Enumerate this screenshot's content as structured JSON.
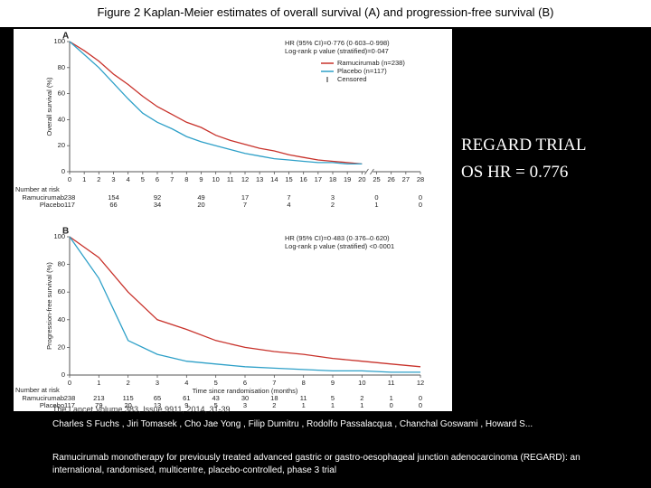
{
  "title": "Figure 2 Kaplan-Meier estimates of overall survival (A) and progression-free survival (B)",
  "chart_data": [
    {
      "type": "line",
      "panel": "A",
      "ylabel": "Overall survival (%)",
      "x": [
        0,
        1,
        2,
        3,
        4,
        5,
        6,
        7,
        8,
        9,
        10,
        11,
        12,
        13,
        14,
        15,
        16,
        17,
        18,
        19,
        20
      ],
      "series": [
        {
          "name": "Ramucirumab (n=238)",
          "color": "#c8322b",
          "values": [
            100,
            93,
            85,
            75,
            67,
            58,
            50,
            44,
            38,
            34,
            28,
            24,
            21,
            18,
            16,
            13,
            11,
            9,
            8,
            7,
            6
          ]
        },
        {
          "name": "Placebo (n=117)",
          "color": "#2ea0c8",
          "values": [
            100,
            90,
            80,
            68,
            56,
            45,
            38,
            33,
            27,
            23,
            20,
            17,
            14,
            12,
            10,
            9,
            8,
            7,
            7,
            6,
            6
          ]
        }
      ],
      "censored_label": "Censored",
      "annotations": [
        "HR (95% CI)=0·776 (0·603–0·998)",
        "Log-rank p value (stratified)=0·047"
      ],
      "xlim": [
        0,
        28
      ],
      "xbreak": [
        20,
        25
      ],
      "xticks": [
        0,
        1,
        2,
        3,
        4,
        5,
        6,
        7,
        8,
        9,
        10,
        11,
        12,
        13,
        14,
        15,
        16,
        17,
        18,
        19,
        20,
        25,
        26,
        27,
        28
      ],
      "ylim": [
        0,
        100
      ],
      "yticks": [
        0,
        20,
        40,
        60,
        80,
        100
      ],
      "risk_title": "Number at risk",
      "risk_rows": [
        {
          "name": "Ramucirumab",
          "values": [
            238,
            154,
            92,
            49,
            17,
            7,
            3,
            0,
            0
          ]
        },
        {
          "name": "Placebo",
          "values": [
            117,
            66,
            34,
            20,
            7,
            4,
            2,
            1,
            0
          ]
        }
      ]
    },
    {
      "type": "line",
      "panel": "B",
      "ylabel": "Progression-free survival (%)",
      "xlabel": "Time since randomisation (months)",
      "x": [
        0,
        1,
        2,
        3,
        4,
        5,
        6,
        7,
        8,
        9,
        10,
        11,
        12
      ],
      "series": [
        {
          "color": "#c8322b",
          "values": [
            100,
            85,
            60,
            40,
            33,
            25,
            20,
            17,
            15,
            12,
            10,
            8,
            6
          ]
        },
        {
          "color": "#2ea0c8",
          "values": [
            100,
            70,
            25,
            15,
            10,
            8,
            6,
            5,
            4,
            3,
            3,
            2,
            2
          ]
        }
      ],
      "annotations": [
        "HR (95% CI)=0·483 (0·376–0·620)",
        "Log-rank p value (stratified) <0·0001"
      ],
      "xlim": [
        0,
        12
      ],
      "xticks": [
        0,
        1,
        2,
        3,
        4,
        5,
        6,
        7,
        8,
        9,
        10,
        11,
        12
      ],
      "ylim": [
        0,
        100
      ],
      "yticks": [
        0,
        20,
        40,
        60,
        80,
        100
      ],
      "risk_title": "Number at risk",
      "risk_rows": [
        {
          "name": "Ramucirumab",
          "values": [
            238,
            213,
            115,
            65,
            61,
            43,
            30,
            18,
            11,
            5,
            2,
            1,
            0
          ]
        },
        {
          "name": "Placebo",
          "values": [
            117,
            79,
            20,
            13,
            9,
            5,
            3,
            2,
            1,
            1,
            1,
            0,
            0
          ]
        }
      ]
    }
  ],
  "side_text": [
    "REGARD TRIAL",
    "OS HR = 0.776"
  ],
  "citation": "The Lancet Volume 383, Issue 9911, 2014, 31-39",
  "authors": "Charles S Fuchs , Jiri Tomasek , Cho Jae Yong , Filip Dumitru , Rodolfo Passalacqua , Chanchal Goswami , Howard S...",
  "article": "Ramucirumab monotherapy for previously treated advanced gastric or gastro-oesophageal junction adenocarcinoma (REGARD): an international, randomised, multicentre, placebo-controlled, phase 3 trial"
}
